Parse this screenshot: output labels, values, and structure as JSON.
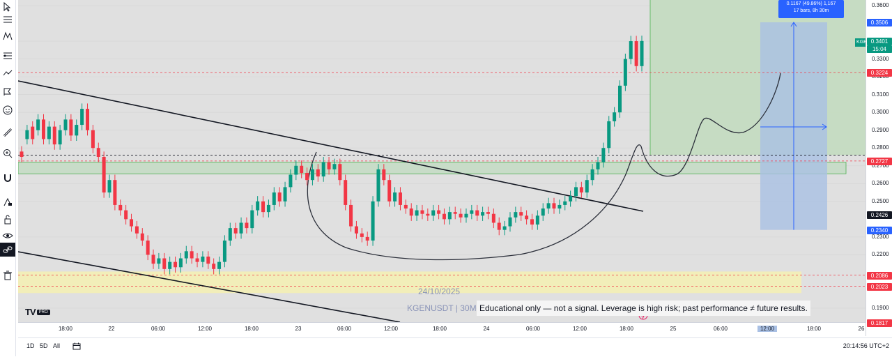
{
  "symbol": "KGENUSDT",
  "watermark": {
    "date": "24/10/2025",
    "symbol_interval": "KGENUSDT | 30M"
  },
  "disclaimer": "Educational only — not a signal. Leverage is high risk; past performance ≠ future results.",
  "range_measure": {
    "line1": "0.1167 (49.86%) 1,167",
    "line2": "17 bars, 8h 30m"
  },
  "price_axis": {
    "ticks": [
      "0.3600",
      "0.3400",
      "0.3300",
      "0.3200",
      "0.3100",
      "0.3000",
      "0.2900",
      "0.2800",
      "0.2700",
      "0.2600",
      "0.2500",
      "0.2300",
      "0.2200",
      "0.1900"
    ],
    "labels": {
      "target": "0.3506",
      "current_price": "0.3401",
      "countdown": "15:04",
      "level_red": "0.3224",
      "level_red2": "0.2727",
      "level_entry": "0.2426",
      "level_stop": "0.2340",
      "level_low1": "0.2086",
      "level_low2": "0.2023",
      "level_bottom": "0.1817"
    }
  },
  "time_axis": {
    "ticks": [
      "18:00",
      "22",
      "06:00",
      "12:00",
      "18:00",
      "23",
      "06:00",
      "12:00",
      "18:00",
      "24",
      "06:00",
      "12:00",
      "18:00",
      "25",
      "06:00",
      "12:00",
      "18:00",
      "26"
    ]
  },
  "bottom_bar": {
    "ranges": [
      "1D",
      "5D",
      "All"
    ],
    "clock": "20:14:56 UTC+2"
  },
  "branding": {
    "logo": "TV",
    "tier": "PRO"
  },
  "colors": {
    "up": "#089981",
    "down": "#f23645",
    "accent": "#2962ff",
    "background": "#e0e0e0"
  },
  "chart_data": {
    "type": "candlestick",
    "title": "",
    "xlabel": "",
    "ylabel": "",
    "ylim": [
      0.18,
      0.365
    ],
    "ohlc_description": "30m candles, KGENUSDT",
    "key_levels": [
      0.3506,
      0.3401,
      0.3224,
      0.2727,
      0.2426,
      0.234,
      0.2086,
      0.2023,
      0.1817
    ]
  },
  "toolbar": {
    "tools": [
      "cursor-icon",
      "trendline-icon",
      "fib-icon",
      "pattern-icon",
      "forecast-icon",
      "brush-icon",
      "text-icon",
      "emoji-icon",
      "ruler-icon",
      "zoom-icon",
      "magnet-icon",
      "lock-drawing-icon",
      "lock-icon",
      "eye-icon",
      "link-icon",
      "trash-icon"
    ]
  }
}
